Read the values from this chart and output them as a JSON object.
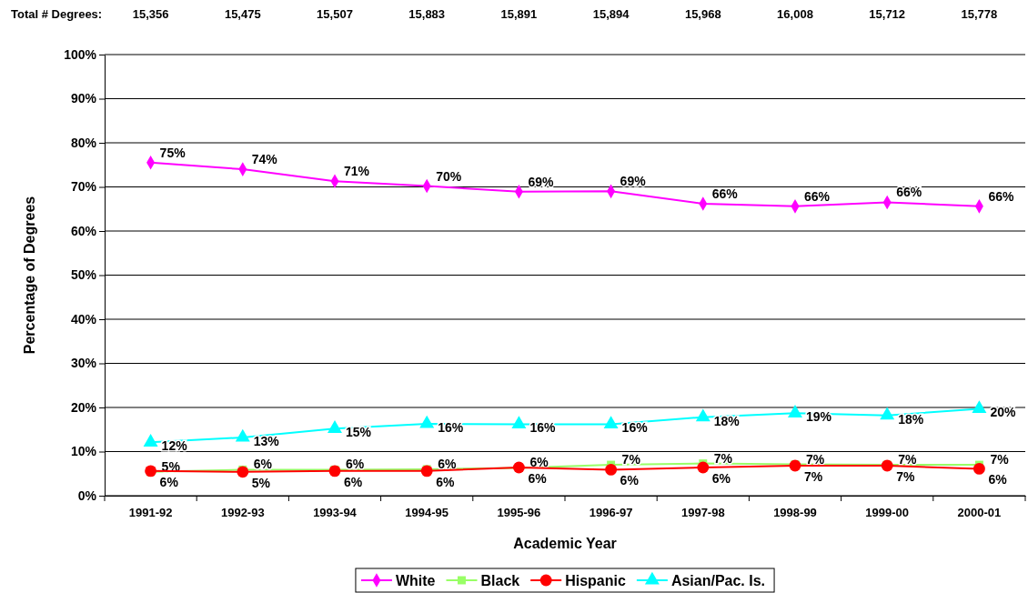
{
  "chart_data": {
    "type": "line",
    "xlabel": "Academic Year",
    "ylabel": "Percentage of Degrees",
    "categories": [
      "1991-92",
      "1992-93",
      "1993-94",
      "1994-95",
      "1995-96",
      "1996-97",
      "1997-98",
      "1998-99",
      "1999-00",
      "2000-01"
    ],
    "ylim": [
      0,
      100
    ],
    "yticks": [
      {
        "value": 0,
        "label": "0%"
      },
      {
        "value": 10,
        "label": "10%"
      },
      {
        "value": 20,
        "label": "20%"
      },
      {
        "value": 30,
        "label": "30%"
      },
      {
        "value": 40,
        "label": "40%"
      },
      {
        "value": 50,
        "label": "50%"
      },
      {
        "value": 60,
        "label": "60%"
      },
      {
        "value": 70,
        "label": "70%"
      },
      {
        "value": 80,
        "label": "80%"
      },
      {
        "value": 90,
        "label": "90%"
      },
      {
        "value": 100,
        "label": "100%"
      }
    ],
    "grid": "y",
    "legend": "bottom",
    "series": [
      {
        "name": "White",
        "color": "#ff00ff",
        "marker": "diamond",
        "values": [
          75.5,
          74.0,
          71.3,
          70.2,
          68.9,
          69.0,
          66.2,
          65.6,
          66.5,
          65.6
        ],
        "value_labels": [
          "75%",
          "74%",
          "71%",
          "70%",
          "69%",
          "69%",
          "66%",
          "66%",
          "66%",
          "66%"
        ]
      },
      {
        "name": "Black",
        "color": "#99ff66",
        "marker": "square",
        "values": [
          5.4,
          5.9,
          5.9,
          6.0,
          6.3,
          7.0,
          7.3,
          7.1,
          7.0,
          7.0
        ],
        "value_labels": [
          "5%",
          "6%",
          "6%",
          "6%",
          "6%",
          "7%",
          "7%",
          "7%",
          "7%",
          "7%"
        ]
      },
      {
        "name": "Hispanic",
        "color": "#ff0000",
        "marker": "circle",
        "values": [
          5.6,
          5.4,
          5.6,
          5.6,
          6.4,
          5.9,
          6.4,
          6.8,
          6.8,
          6.1
        ],
        "value_labels": [
          "6%",
          "5%",
          "6%",
          "6%",
          "6%",
          "6%",
          "6%",
          "7%",
          "7%",
          "6%"
        ]
      },
      {
        "name": "Asian/Pac. Is.",
        "color": "#00ffff",
        "marker": "triangle",
        "values": [
          12.1,
          13.2,
          15.2,
          16.3,
          16.2,
          16.2,
          17.8,
          18.7,
          18.2,
          19.7
        ],
        "value_labels": [
          "12%",
          "13%",
          "15%",
          "16%",
          "16%",
          "16%",
          "18%",
          "19%",
          "18%",
          "20%"
        ]
      }
    ],
    "annotations": [
      "Total # Degrees:",
      "15,356",
      "15,475",
      "15,507",
      "15,883",
      "15,891",
      "15,894",
      "15,968",
      "16,008",
      "15,712",
      "15,778"
    ]
  }
}
